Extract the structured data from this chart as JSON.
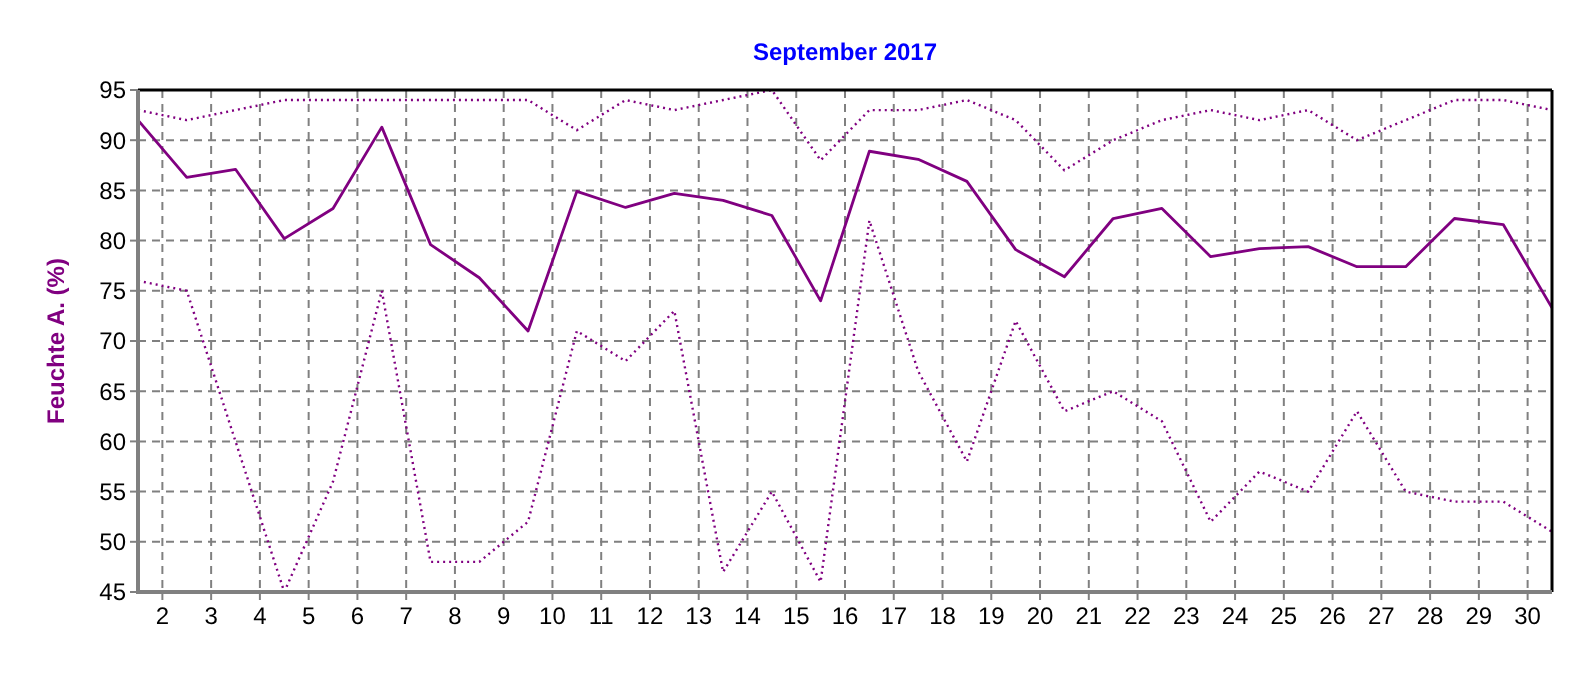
{
  "chart_data": {
    "type": "line",
    "title": "September 2017",
    "ylabel": "Feuchte A.  (%)",
    "x": [
      1.5,
      2.5,
      3.5,
      4.5,
      5.5,
      6.5,
      7.5,
      8.5,
      9.5,
      10.5,
      11.5,
      12.5,
      13.5,
      14.5,
      15.5,
      16.5,
      17.5,
      18.5,
      19.5,
      20.5,
      21.5,
      22.5,
      23.5,
      24.5,
      25.5,
      26.5,
      27.5,
      28.5,
      29.5,
      30.5
    ],
    "series": [
      {
        "color": "#800080",
        "line_style": "dotted",
        "values": [
          93,
          92,
          93,
          94,
          94,
          94,
          94,
          94,
          94,
          91,
          94,
          93,
          94,
          95,
          88,
          93,
          93,
          94,
          92,
          87,
          90,
          92,
          93,
          92,
          93,
          90,
          92,
          94,
          94,
          93
        ]
      },
      {
        "color": "#800080",
        "line_style": "solid",
        "values": [
          92,
          86.3,
          87.1,
          80.2,
          83.2,
          91.3,
          79.6,
          76.3,
          71,
          84.9,
          83.3,
          84.7,
          84,
          82.5,
          74,
          88.9,
          88.1,
          85.9,
          79.1,
          76.4,
          82.2,
          83.2,
          78.4,
          79.2,
          79.4,
          77.4,
          77.4,
          82.2,
          81.6,
          73.3
        ]
      },
      {
        "color": "#800080",
        "line_style": "dotted",
        "values": [
          76,
          75,
          60,
          45,
          56,
          75,
          48,
          48,
          52,
          71,
          68,
          73,
          47,
          55,
          46,
          82,
          67,
          58,
          72,
          63,
          65,
          62,
          52,
          57,
          55,
          63,
          55,
          54,
          54,
          51
        ]
      }
    ],
    "xlim": [
      1.5,
      30.5
    ],
    "xticks": [
      2,
      3,
      4,
      5,
      6,
      7,
      8,
      9,
      10,
      11,
      12,
      13,
      14,
      15,
      16,
      17,
      18,
      19,
      20,
      21,
      22,
      23,
      24,
      25,
      26,
      27,
      28,
      29,
      30
    ],
    "ylim": [
      45,
      95
    ],
    "yticks": [
      45,
      50,
      55,
      60,
      65,
      70,
      75,
      80,
      85,
      90,
      95
    ],
    "grid": true,
    "marker": "none"
  }
}
